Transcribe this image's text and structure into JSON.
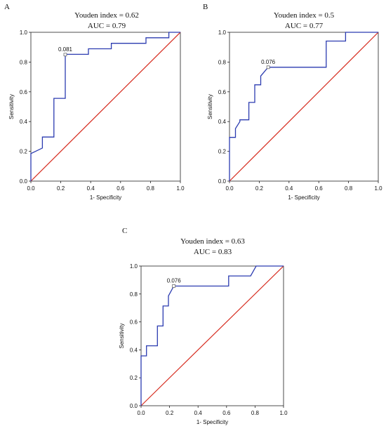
{
  "chart_data": [
    {
      "type": "line",
      "panel_label": "A",
      "title": "Youden index = 0.62",
      "subtitle": "AUC = 0.79",
      "xlabel": "1- Specificity",
      "ylabel": "Sensitivity",
      "xlim": [
        0,
        1
      ],
      "ylim": [
        0,
        1
      ],
      "xticks": [
        "0.0",
        "0.2",
        "0.4",
        "0.6",
        "0.8",
        "1.0"
      ],
      "yticks": [
        "0.0",
        "0.2",
        "0.4",
        "0.6",
        "0.8",
        "1.0"
      ],
      "grid": false,
      "roc_color": "#2b3bb0",
      "reference_color": "#d62b1e",
      "cutoff_label": "0.081",
      "cutoff_point": [
        0.23,
        0.85
      ],
      "reference_line": [
        [
          0,
          0
        ],
        [
          1,
          1
        ]
      ],
      "roc_points": [
        [
          0,
          0
        ],
        [
          0,
          0.185
        ],
        [
          0.077,
          0.222
        ],
        [
          0.077,
          0.296
        ],
        [
          0.154,
          0.296
        ],
        [
          0.154,
          0.556
        ],
        [
          0.23,
          0.556
        ],
        [
          0.23,
          0.852
        ],
        [
          0.385,
          0.852
        ],
        [
          0.385,
          0.889
        ],
        [
          0.538,
          0.889
        ],
        [
          0.538,
          0.926
        ],
        [
          0.77,
          0.926
        ],
        [
          0.77,
          0.963
        ],
        [
          0.923,
          0.963
        ],
        [
          0.923,
          1.0
        ],
        [
          1.0,
          1.0
        ]
      ]
    },
    {
      "type": "line",
      "panel_label": "B",
      "title": "Youden index = 0.5",
      "subtitle": "AUC = 0.77",
      "xlabel": "1- Specificity",
      "ylabel": "Sensitivity",
      "xlim": [
        0,
        1
      ],
      "ylim": [
        0,
        1
      ],
      "xticks": [
        "0.0",
        "0.2",
        "0.4",
        "0.6",
        "0.8",
        "1.0"
      ],
      "yticks": [
        "0.0",
        "0.2",
        "0.4",
        "0.6",
        "0.8",
        "1.0"
      ],
      "grid": false,
      "roc_color": "#2b3bb0",
      "reference_color": "#d62b1e",
      "cutoff_label": "0.076",
      "cutoff_point": [
        0.26,
        0.765
      ],
      "reference_line": [
        [
          0,
          0
        ],
        [
          1,
          1
        ]
      ],
      "roc_points": [
        [
          0,
          0
        ],
        [
          0,
          0.294
        ],
        [
          0.04,
          0.294
        ],
        [
          0.04,
          0.353
        ],
        [
          0.07,
          0.4
        ],
        [
          0.07,
          0.412
        ],
        [
          0.13,
          0.412
        ],
        [
          0.13,
          0.529
        ],
        [
          0.17,
          0.529
        ],
        [
          0.17,
          0.647
        ],
        [
          0.21,
          0.647
        ],
        [
          0.21,
          0.706
        ],
        [
          0.26,
          0.765
        ],
        [
          0.65,
          0.765
        ],
        [
          0.65,
          0.941
        ],
        [
          0.78,
          0.941
        ],
        [
          0.78,
          1.0
        ],
        [
          1.0,
          1.0
        ]
      ]
    },
    {
      "type": "line",
      "panel_label": "C",
      "title": "Youden index = 0.63",
      "subtitle": "AUC = 0.83",
      "xlabel": "1- Specificity",
      "ylabel": "Sensitivity",
      "xlim": [
        0,
        1
      ],
      "ylim": [
        0,
        1
      ],
      "xticks": [
        "0.0",
        "0.2",
        "0.4",
        "0.6",
        "0.8",
        "1.0"
      ],
      "yticks": [
        "0.0",
        "0.2",
        "0.4",
        "0.6",
        "0.8",
        "1.0"
      ],
      "grid": false,
      "roc_color": "#2b3bb0",
      "reference_color": "#d62b1e",
      "cutoff_label": "0.076",
      "cutoff_point": [
        0.23,
        0.857
      ],
      "reference_line": [
        [
          0,
          0
        ],
        [
          1,
          1
        ]
      ],
      "roc_points": [
        [
          0,
          0
        ],
        [
          0,
          0.357
        ],
        [
          0.038,
          0.357
        ],
        [
          0.038,
          0.429
        ],
        [
          0.115,
          0.429
        ],
        [
          0.115,
          0.571
        ],
        [
          0.154,
          0.571
        ],
        [
          0.154,
          0.714
        ],
        [
          0.192,
          0.714
        ],
        [
          0.192,
          0.786
        ],
        [
          0.23,
          0.857
        ],
        [
          0.615,
          0.857
        ],
        [
          0.615,
          0.929
        ],
        [
          0.769,
          0.929
        ],
        [
          0.808,
          1.0
        ],
        [
          1.0,
          1.0
        ]
      ]
    }
  ]
}
